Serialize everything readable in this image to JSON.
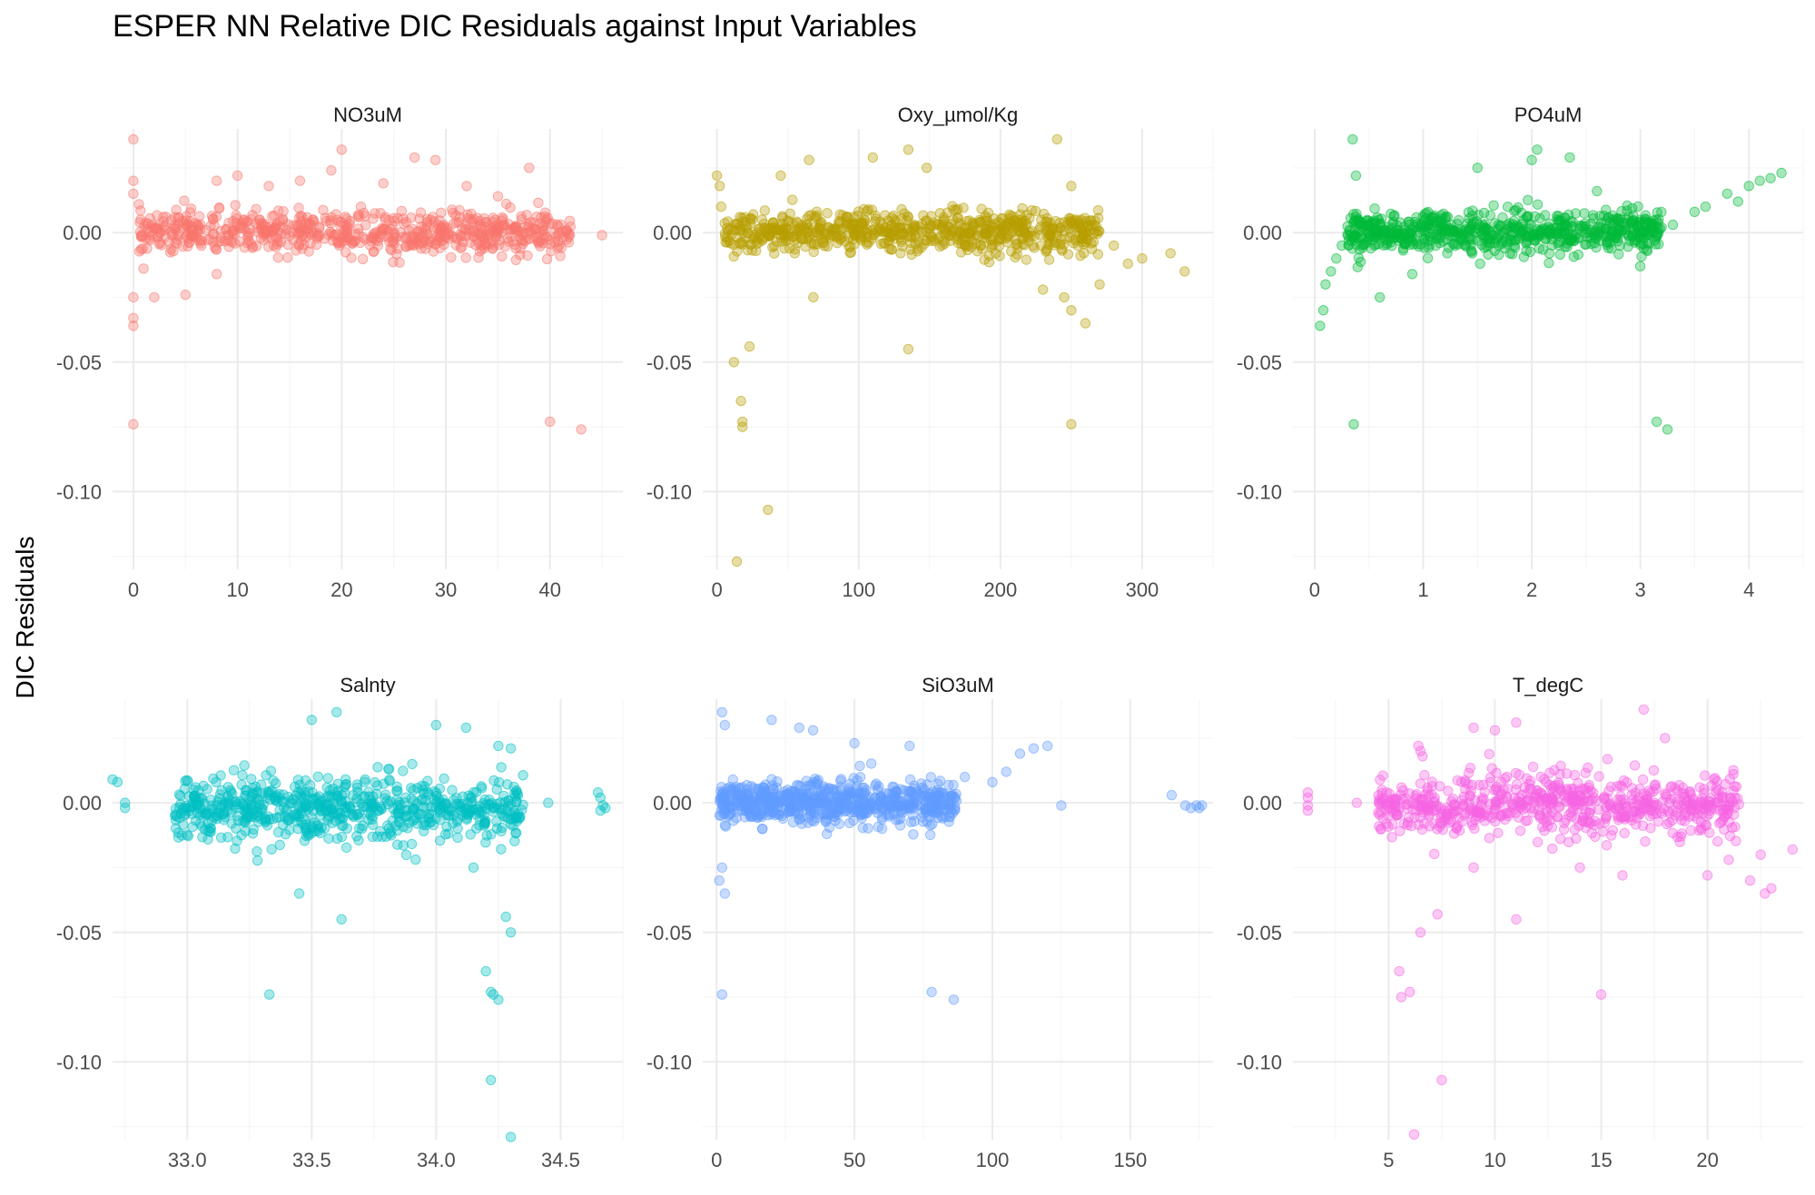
{
  "chart_data": {
    "type": "scatter",
    "title": "ESPER NN Relative DIC Residuals against Input Variables",
    "ylabel": "DIC Residuals",
    "ylim": [
      -0.13,
      0.04
    ],
    "yticks": [
      0.0,
      -0.05,
      -0.1
    ],
    "ytick_labels": [
      "0.00",
      "-0.05",
      "-0.10"
    ],
    "grid": true,
    "legend": "none",
    "point_opacity": 0.35,
    "panels": [
      {
        "name": "NO3uM",
        "color": "#F8766D",
        "xlim": [
          -2,
          47
        ],
        "xticks": [
          0,
          10,
          20,
          30,
          40
        ],
        "xtick_labels": [
          "0",
          "10",
          "20",
          "30",
          "40"
        ],
        "dense": {
          "xmin": 0.5,
          "xmax": 42,
          "center": 0.0,
          "spread": 0.004
        },
        "points": [
          [
            0,
            0.036
          ],
          [
            0,
            0.02
          ],
          [
            0,
            0.015
          ],
          [
            0,
            -0.025
          ],
          [
            0,
            -0.033
          ],
          [
            0,
            -0.036
          ],
          [
            0,
            -0.074
          ],
          [
            8,
            0.02
          ],
          [
            10,
            0.022
          ],
          [
            16,
            0.02
          ],
          [
            20,
            0.032
          ],
          [
            19,
            0.024
          ],
          [
            27,
            0.029
          ],
          [
            29,
            0.028
          ],
          [
            32,
            0.018
          ],
          [
            38,
            0.025
          ],
          [
            2,
            -0.025
          ],
          [
            5,
            -0.024
          ],
          [
            8,
            -0.016
          ],
          [
            40,
            -0.073
          ],
          [
            43,
            -0.076
          ],
          [
            45,
            -0.001
          ],
          [
            13,
            0.018
          ],
          [
            24,
            0.019
          ],
          [
            35,
            0.014
          ]
        ]
      },
      {
        "name": "Oxy_µmol/Kg",
        "color": "#B79F00",
        "xlim": [
          -10,
          350
        ],
        "xticks": [
          0,
          100,
          200,
          300
        ],
        "xtick_labels": [
          "0",
          "100",
          "200",
          "300"
        ],
        "dense": {
          "xmin": 5,
          "xmax": 270,
          "center": 0.0,
          "spread": 0.004
        },
        "points": [
          [
            0,
            0.022
          ],
          [
            2,
            0.018
          ],
          [
            3,
            0.01
          ],
          [
            12,
            -0.05
          ],
          [
            17,
            -0.065
          ],
          [
            18,
            -0.073
          ],
          [
            18,
            -0.075
          ],
          [
            23,
            -0.044
          ],
          [
            14,
            -0.127
          ],
          [
            36,
            -0.107
          ],
          [
            68,
            -0.025
          ],
          [
            135,
            -0.045
          ],
          [
            250,
            -0.074
          ],
          [
            45,
            0.022
          ],
          [
            65,
            0.028
          ],
          [
            110,
            0.029
          ],
          [
            135,
            0.032
          ],
          [
            148,
            0.025
          ],
          [
            240,
            0.036
          ],
          [
            250,
            0.018
          ],
          [
            280,
            -0.005
          ],
          [
            300,
            -0.01
          ],
          [
            320,
            -0.008
          ],
          [
            330,
            -0.015
          ],
          [
            250,
            -0.03
          ],
          [
            260,
            -0.035
          ],
          [
            245,
            -0.025
          ],
          [
            230,
            -0.022
          ],
          [
            270,
            -0.02
          ],
          [
            290,
            -0.012
          ]
        ]
      },
      {
        "name": "PO4uM",
        "color": "#00BA38",
        "xlim": [
          -0.2,
          4.5
        ],
        "xticks": [
          0,
          1,
          2,
          3,
          4
        ],
        "xtick_labels": [
          "0",
          "1",
          "2",
          "3",
          "4"
        ],
        "dense": {
          "xmin": 0.3,
          "xmax": 3.2,
          "center": 0.0,
          "spread": 0.004
        },
        "points": [
          [
            0.05,
            -0.036
          ],
          [
            0.08,
            -0.03
          ],
          [
            0.1,
            -0.02
          ],
          [
            0.15,
            -0.015
          ],
          [
            0.2,
            -0.01
          ],
          [
            0.25,
            -0.005
          ],
          [
            0.35,
            0.036
          ],
          [
            0.38,
            0.022
          ],
          [
            0.36,
            -0.074
          ],
          [
            3.15,
            -0.073
          ],
          [
            3.25,
            -0.076
          ],
          [
            1.5,
            0.025
          ],
          [
            2.0,
            0.028
          ],
          [
            2.05,
            0.032
          ],
          [
            2.35,
            0.029
          ],
          [
            2.6,
            0.016
          ],
          [
            3.0,
            -0.013
          ],
          [
            0.6,
            -0.025
          ],
          [
            0.9,
            -0.016
          ],
          [
            3.5,
            0.008
          ],
          [
            3.8,
            0.015
          ],
          [
            4.0,
            0.018
          ],
          [
            4.1,
            0.02
          ],
          [
            4.3,
            0.023
          ],
          [
            3.3,
            0.003
          ],
          [
            3.6,
            0.01
          ],
          [
            3.9,
            0.012
          ],
          [
            4.2,
            0.021
          ]
        ]
      },
      {
        "name": "Salnty",
        "color": "#00BFC4",
        "xlim": [
          32.7,
          34.75
        ],
        "xticks": [
          33.0,
          33.5,
          34.0,
          34.5
        ],
        "xtick_labels": [
          "33.0",
          "33.5",
          "34.0",
          "34.5"
        ],
        "dense": {
          "xmin": 32.95,
          "xmax": 34.35,
          "center": -0.002,
          "spread": 0.006
        },
        "points": [
          [
            32.7,
            0.009
          ],
          [
            32.72,
            0.008
          ],
          [
            32.75,
            0.0
          ],
          [
            32.75,
            -0.002
          ],
          [
            33.5,
            0.032
          ],
          [
            33.6,
            0.035
          ],
          [
            34.0,
            0.03
          ],
          [
            34.12,
            0.029
          ],
          [
            34.25,
            0.022
          ],
          [
            34.3,
            0.021
          ],
          [
            34.28,
            -0.044
          ],
          [
            34.3,
            -0.05
          ],
          [
            34.2,
            -0.065
          ],
          [
            34.22,
            -0.073
          ],
          [
            34.23,
            -0.074
          ],
          [
            34.25,
            -0.076
          ],
          [
            34.22,
            -0.107
          ],
          [
            34.3,
            -0.129
          ],
          [
            33.33,
            -0.074
          ],
          [
            33.62,
            -0.045
          ],
          [
            33.45,
            -0.035
          ],
          [
            34.15,
            -0.025
          ],
          [
            34.45,
            0.0
          ],
          [
            34.65,
            0.004
          ],
          [
            34.66,
            0.002
          ],
          [
            34.67,
            -0.001
          ],
          [
            34.68,
            -0.002
          ],
          [
            34.66,
            -0.003
          ]
        ]
      },
      {
        "name": "SiO3uM",
        "color": "#619CFF",
        "xlim": [
          -5,
          180
        ],
        "xticks": [
          0,
          50,
          100,
          150
        ],
        "xtick_labels": [
          "0",
          "50",
          "100",
          "150"
        ],
        "dense": {
          "xmin": 1,
          "xmax": 87,
          "center": 0.0,
          "spread": 0.004
        },
        "points": [
          [
            2,
            0.035
          ],
          [
            3,
            0.03
          ],
          [
            20,
            0.032
          ],
          [
            30,
            0.029
          ],
          [
            35,
            0.028
          ],
          [
            50,
            0.023
          ],
          [
            70,
            0.022
          ],
          [
            110,
            0.019
          ],
          [
            115,
            0.021
          ],
          [
            120,
            0.022
          ],
          [
            90,
            0.01
          ],
          [
            100,
            0.008
          ],
          [
            105,
            0.012
          ],
          [
            2,
            -0.025
          ],
          [
            3,
            -0.035
          ],
          [
            1,
            -0.03
          ],
          [
            2,
            -0.074
          ],
          [
            78,
            -0.073
          ],
          [
            86,
            -0.076
          ],
          [
            125,
            -0.001
          ],
          [
            165,
            0.003
          ],
          [
            170,
            -0.001
          ],
          [
            172,
            -0.002
          ],
          [
            174,
            -0.001
          ],
          [
            175,
            -0.002
          ],
          [
            176,
            -0.001
          ],
          [
            60,
            -0.01
          ],
          [
            40,
            -0.012
          ]
        ]
      },
      {
        "name": "T_degC",
        "color": "#F564E3",
        "xlim": [
          0.5,
          24.5
        ],
        "xticks": [
          5,
          10,
          15,
          20
        ],
        "xtick_labels": [
          "5",
          "10",
          "15",
          "20"
        ],
        "dense": {
          "xmin": 4.5,
          "xmax": 21.5,
          "center": -0.001,
          "spread": 0.006
        },
        "points": [
          [
            1.2,
            0.004
          ],
          [
            1.2,
            0.002
          ],
          [
            1.2,
            -0.001
          ],
          [
            1.2,
            -0.003
          ],
          [
            3.5,
            0.0
          ],
          [
            6.5,
            0.02
          ],
          [
            6.4,
            0.022
          ],
          [
            6.6,
            0.018
          ],
          [
            9,
            0.029
          ],
          [
            10,
            0.028
          ],
          [
            11,
            0.031
          ],
          [
            17,
            0.036
          ],
          [
            18,
            0.025
          ],
          [
            5.5,
            -0.065
          ],
          [
            5.6,
            -0.075
          ],
          [
            6,
            -0.073
          ],
          [
            6.5,
            -0.05
          ],
          [
            7.3,
            -0.043
          ],
          [
            7.5,
            -0.107
          ],
          [
            6.2,
            -0.128
          ],
          [
            11,
            -0.045
          ],
          [
            15,
            -0.074
          ],
          [
            9,
            -0.025
          ],
          [
            14,
            -0.025
          ],
          [
            16,
            -0.028
          ],
          [
            22,
            -0.03
          ],
          [
            23,
            -0.033
          ],
          [
            24,
            -0.018
          ],
          [
            22.5,
            -0.02
          ],
          [
            21,
            -0.022
          ],
          [
            20,
            -0.028
          ],
          [
            22.7,
            -0.035
          ]
        ]
      }
    ]
  }
}
